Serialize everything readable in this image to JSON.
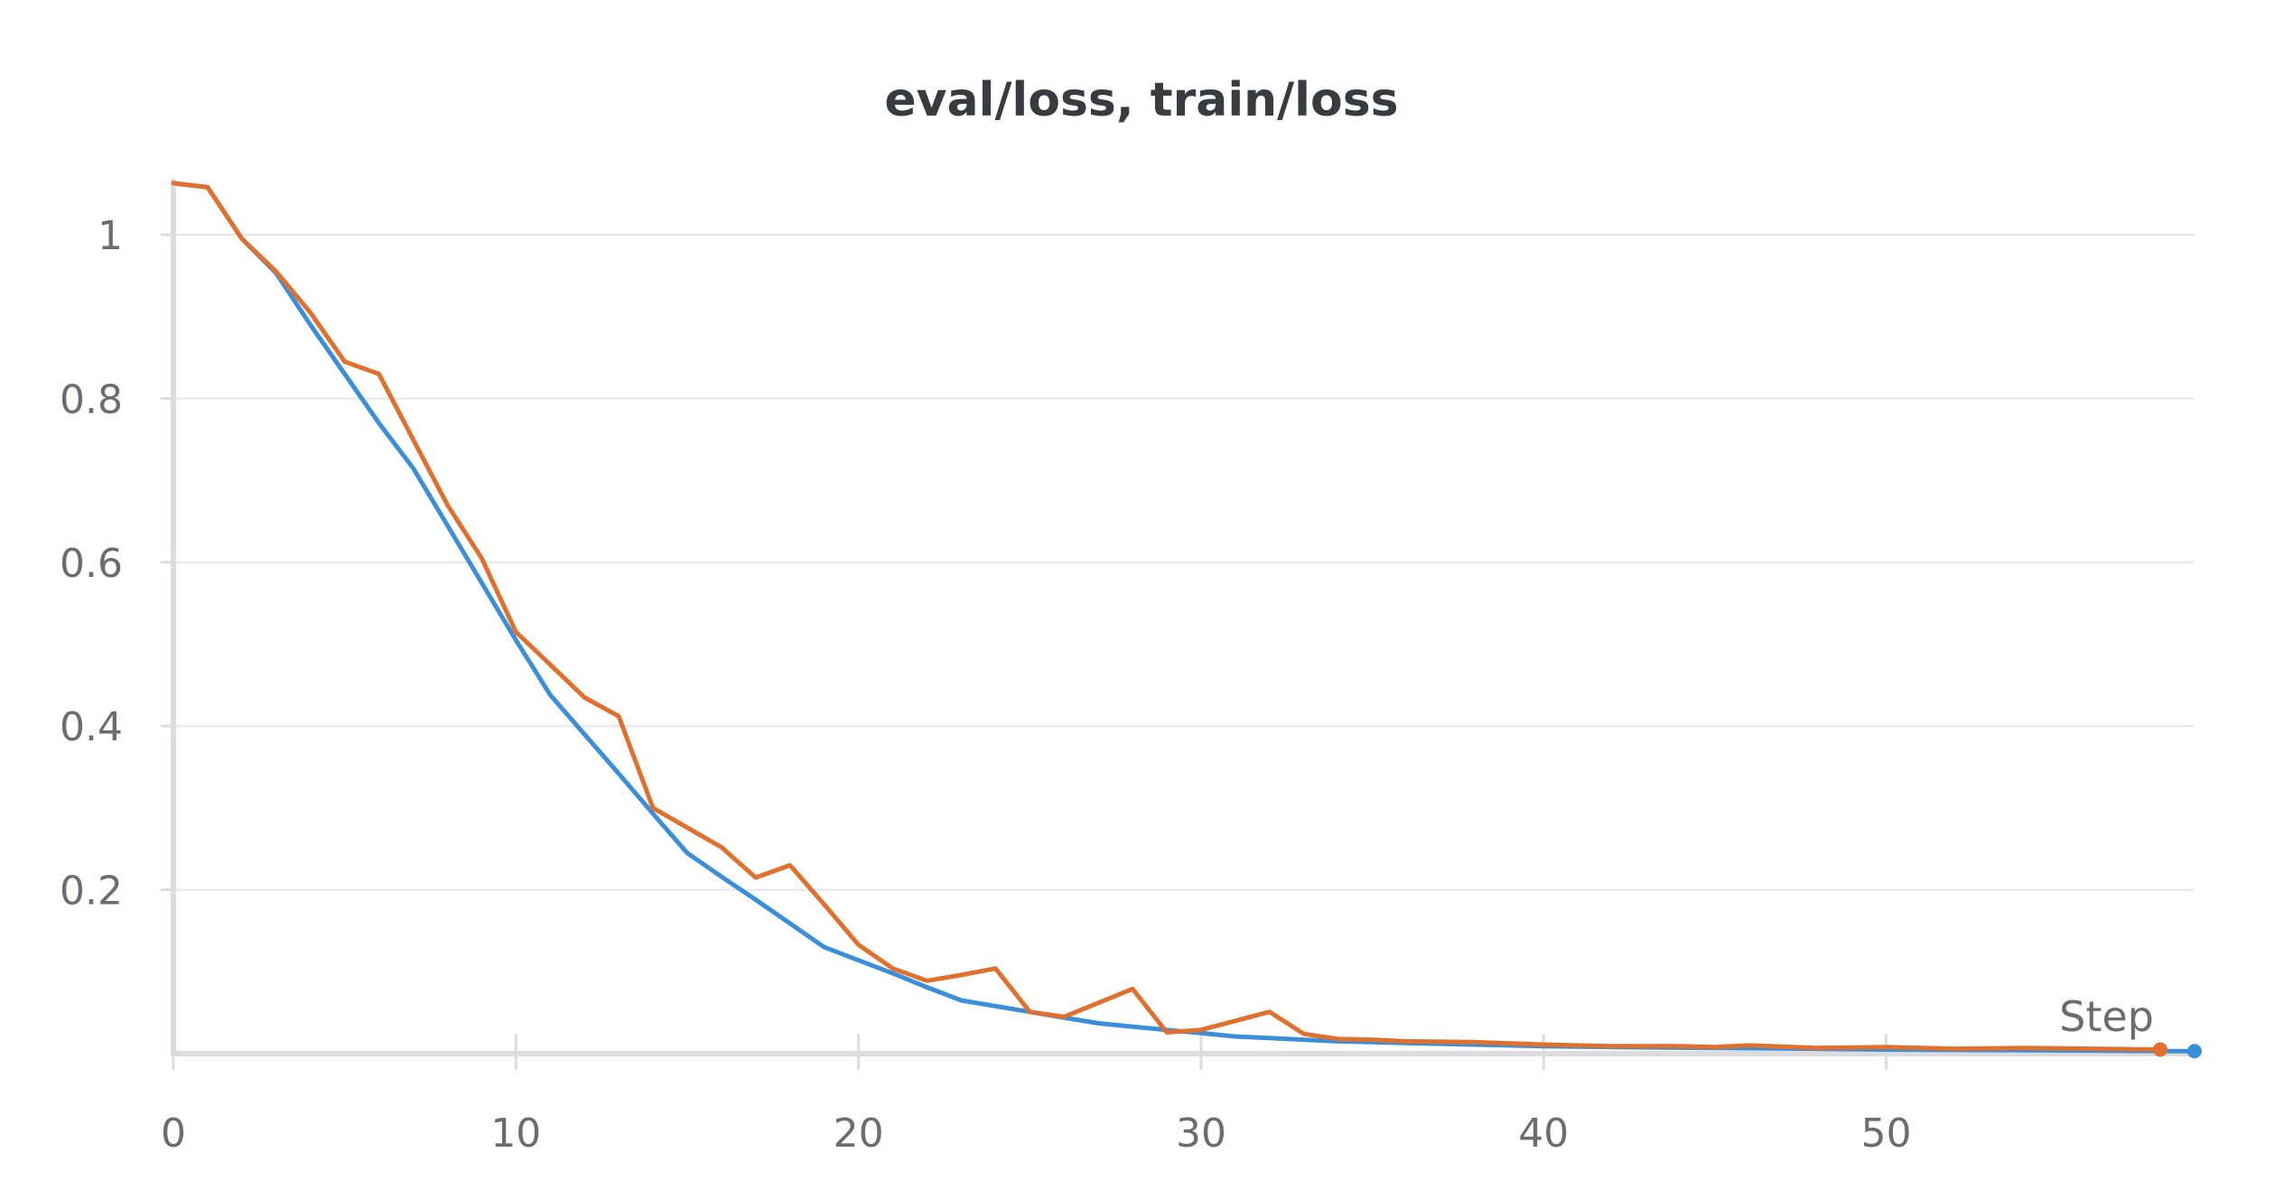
{
  "chart_data": {
    "type": "line",
    "title": "eval/loss, train/loss",
    "xlabel": "Step",
    "ylabel": "",
    "xlim": [
      0,
      59
    ],
    "ylim": [
      0,
      1.065
    ],
    "xticks": [
      0,
      10,
      20,
      30,
      40,
      50
    ],
    "yticks": [
      0.2,
      0.4,
      0.6,
      0.8,
      1
    ],
    "grid": true,
    "series": [
      {
        "color": "#3b8fd9",
        "end_marker": true,
        "points": [
          [
            0,
            1.063
          ],
          [
            1,
            1.058
          ],
          [
            2,
            0.995
          ],
          [
            3,
            0.953
          ],
          [
            4,
            0.89
          ],
          [
            5,
            0.83
          ],
          [
            6,
            0.77
          ],
          [
            7,
            0.715
          ],
          [
            8,
            0.645
          ],
          [
            9,
            0.575
          ],
          [
            10,
            0.505
          ],
          [
            11,
            0.438
          ],
          [
            12,
            0.39
          ],
          [
            13,
            0.342
          ],
          [
            14,
            0.293
          ],
          [
            15,
            0.245
          ],
          [
            16,
            0.216
          ],
          [
            17,
            0.188
          ],
          [
            18,
            0.159
          ],
          [
            19,
            0.13
          ],
          [
            20,
            0.114
          ],
          [
            21,
            0.098
          ],
          [
            22,
            0.081
          ],
          [
            23,
            0.065
          ],
          [
            24,
            0.058
          ],
          [
            25,
            0.051
          ],
          [
            26,
            0.044
          ],
          [
            27,
            0.037
          ],
          [
            28,
            0.033
          ],
          [
            29,
            0.029
          ],
          [
            30,
            0.025
          ],
          [
            31,
            0.021
          ],
          [
            32,
            0.019
          ],
          [
            33,
            0.017
          ],
          [
            34,
            0.015
          ],
          [
            35,
            0.014
          ],
          [
            36,
            0.013
          ],
          [
            37,
            0.012
          ],
          [
            38,
            0.011
          ],
          [
            40,
            0.009
          ],
          [
            42,
            0.008
          ],
          [
            45,
            0.007
          ],
          [
            48,
            0.006
          ],
          [
            50,
            0.005
          ],
          [
            55,
            0.004
          ],
          [
            59,
            0.003
          ]
        ]
      },
      {
        "color": "#e0702e",
        "end_marker": true,
        "points": [
          [
            0,
            1.063
          ],
          [
            1,
            1.058
          ],
          [
            2,
            0.995
          ],
          [
            3,
            0.955
          ],
          [
            4,
            0.905
          ],
          [
            5,
            0.845
          ],
          [
            6,
            0.83
          ],
          [
            7,
            0.75
          ],
          [
            8,
            0.67
          ],
          [
            9,
            0.605
          ],
          [
            10,
            0.515
          ],
          [
            11,
            0.475
          ],
          [
            12,
            0.435
          ],
          [
            13,
            0.412
          ],
          [
            14,
            0.3
          ],
          [
            15,
            0.276
          ],
          [
            16,
            0.252
          ],
          [
            17,
            0.215
          ],
          [
            18,
            0.23
          ],
          [
            19,
            0.182
          ],
          [
            20,
            0.133
          ],
          [
            21,
            0.104
          ],
          [
            22,
            0.089
          ],
          [
            23,
            0.096
          ],
          [
            24,
            0.104
          ],
          [
            25,
            0.051
          ],
          [
            26,
            0.045
          ],
          [
            27,
            0.062
          ],
          [
            28,
            0.079
          ],
          [
            29,
            0.026
          ],
          [
            30,
            0.029
          ],
          [
            31,
            0.04
          ],
          [
            32,
            0.051
          ],
          [
            33,
            0.024
          ],
          [
            34,
            0.018
          ],
          [
            35,
            0.017
          ],
          [
            36,
            0.015
          ],
          [
            38,
            0.014
          ],
          [
            40,
            0.011
          ],
          [
            42,
            0.009
          ],
          [
            44,
            0.009
          ],
          [
            45,
            0.008
          ],
          [
            46,
            0.01
          ],
          [
            48,
            0.007
          ],
          [
            50,
            0.008
          ],
          [
            52,
            0.006
          ],
          [
            54,
            0.007
          ],
          [
            56,
            0.006
          ],
          [
            58,
            0.005
          ]
        ]
      }
    ]
  }
}
